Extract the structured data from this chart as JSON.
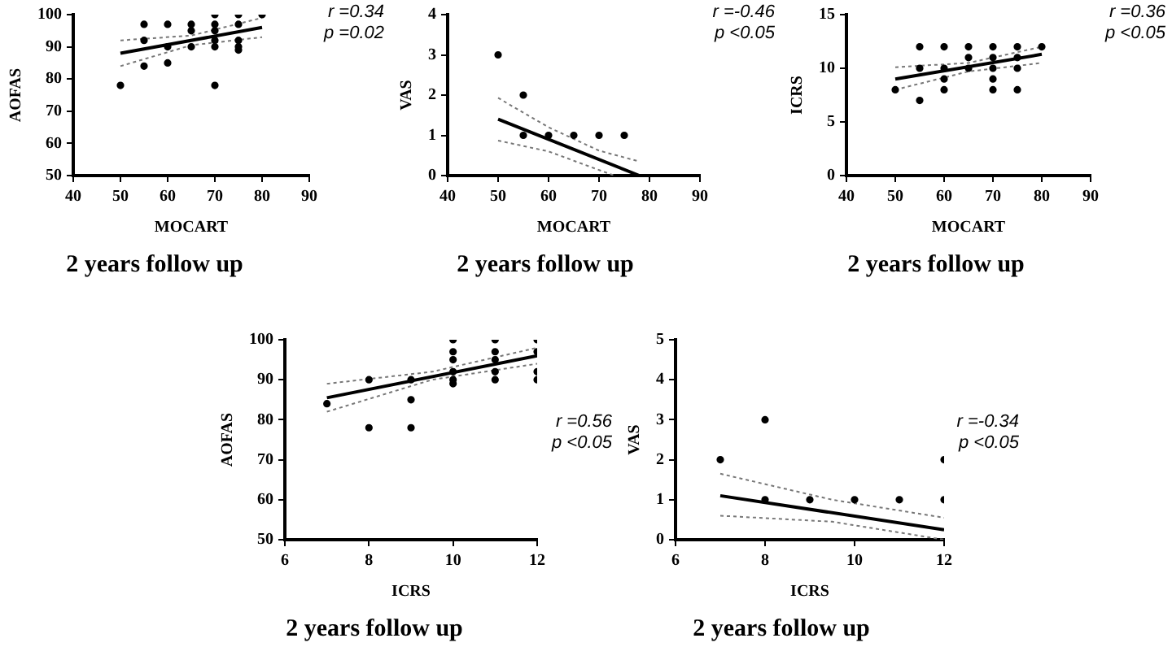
{
  "chart_data": [
    {
      "type": "scatter",
      "title": "2 years follow up",
      "xlabel": "MOCART",
      "ylabel": "AOFAS",
      "annotations": [
        "r =0.34",
        "p =0.02"
      ],
      "xlim": [
        40,
        90
      ],
      "xticks": [
        40,
        50,
        60,
        70,
        80,
        90
      ],
      "ylim": [
        50,
        100
      ],
      "yticks": [
        50,
        60,
        70,
        80,
        90,
        100
      ],
      "grid": false,
      "legend": false,
      "series": [
        {
          "type": "scatter",
          "marker": "circle",
          "color": "#000000",
          "x": [
            50,
            55,
            55,
            55,
            60,
            60,
            60,
            65,
            65,
            65,
            70,
            70,
            70,
            70,
            70,
            70,
            75,
            75,
            75,
            75,
            75,
            80
          ],
          "values": [
            78,
            97,
            92,
            84,
            97,
            90,
            85,
            97,
            95,
            90,
            100,
            97,
            95,
            92,
            90,
            78,
            100,
            97,
            92,
            90,
            89,
            100
          ]
        },
        {
          "type": "line",
          "line_style": "solid",
          "color": "#000000",
          "x": [
            50,
            80
          ],
          "values": [
            88,
            96
          ]
        },
        {
          "type": "line",
          "line_style": "dotted",
          "color": "#777777",
          "x": [
            50,
            65,
            80
          ],
          "values": [
            84,
            90.5,
            93
          ]
        },
        {
          "type": "line",
          "line_style": "dotted",
          "color": "#777777",
          "x": [
            50,
            65,
            80
          ],
          "values": [
            92,
            93.5,
            99
          ]
        }
      ]
    },
    {
      "type": "scatter",
      "title": "2 years follow up",
      "xlabel": "MOCART",
      "ylabel": "VAS",
      "annotations": [
        "r =-0.46",
        "p <0.05"
      ],
      "xlim": [
        40,
        90
      ],
      "xticks": [
        40,
        50,
        60,
        70,
        80,
        90
      ],
      "ylim": [
        0,
        4
      ],
      "yticks": [
        0,
        1,
        2,
        3,
        4
      ],
      "grid": false,
      "legend": false,
      "series": [
        {
          "type": "scatter",
          "marker": "circle",
          "color": "#000000",
          "x": [
            50,
            55,
            55,
            60,
            65,
            70,
            75
          ],
          "values": [
            3,
            2,
            1,
            1,
            1,
            1,
            1
          ]
        },
        {
          "type": "line",
          "line_style": "solid",
          "color": "#000000",
          "x": [
            50,
            78
          ],
          "values": [
            1.4,
            0
          ]
        },
        {
          "type": "line",
          "line_style": "dotted",
          "color": "#777777",
          "x": [
            50,
            60,
            73
          ],
          "values": [
            0.87,
            0.6,
            0
          ]
        },
        {
          "type": "line",
          "line_style": "dotted",
          "color": "#777777",
          "x": [
            50,
            60,
            70,
            78
          ],
          "values": [
            1.93,
            1.2,
            0.62,
            0.35
          ]
        }
      ]
    },
    {
      "type": "scatter",
      "title": "2 years follow up",
      "xlabel": "MOCART",
      "ylabel": "ICRS",
      "annotations": [
        "r =0.36",
        "p <0.05"
      ],
      "xlim": [
        40,
        90
      ],
      "xticks": [
        40,
        50,
        60,
        70,
        80,
        90
      ],
      "ylim": [
        0,
        15
      ],
      "yticks": [
        0,
        5,
        10,
        15
      ],
      "grid": false,
      "legend": false,
      "series": [
        {
          "type": "scatter",
          "marker": "circle",
          "color": "#000000",
          "x": [
            50,
            55,
            55,
            55,
            60,
            60,
            60,
            60,
            65,
            65,
            65,
            70,
            70,
            70,
            70,
            70,
            75,
            75,
            75,
            75,
            80
          ],
          "values": [
            8,
            12,
            10,
            7,
            12,
            10,
            9,
            8,
            12,
            11,
            10,
            12,
            11,
            10,
            9,
            8,
            12,
            11,
            10,
            8,
            12
          ]
        },
        {
          "type": "line",
          "line_style": "solid",
          "color": "#000000",
          "x": [
            50,
            80
          ],
          "values": [
            9,
            11.3
          ]
        },
        {
          "type": "line",
          "line_style": "dotted",
          "color": "#777777",
          "x": [
            50,
            65,
            80
          ],
          "values": [
            8,
            9.7,
            10.5
          ]
        },
        {
          "type": "line",
          "line_style": "dotted",
          "color": "#777777",
          "x": [
            50,
            65,
            80
          ],
          "values": [
            10.1,
            10.5,
            12
          ]
        }
      ]
    },
    {
      "type": "scatter",
      "title": "2 years follow up",
      "xlabel": "ICRS",
      "ylabel": "AOFAS",
      "annotations": [
        "r =0.56",
        "p <0.05"
      ],
      "xlim": [
        6,
        12
      ],
      "xticks": [
        6,
        8,
        10,
        12
      ],
      "ylim": [
        50,
        100
      ],
      "yticks": [
        50,
        60,
        70,
        80,
        90,
        100
      ],
      "grid": false,
      "legend": false,
      "series": [
        {
          "type": "scatter",
          "marker": "circle",
          "color": "#000000",
          "x": [
            7,
            8,
            8,
            9,
            9,
            9,
            10,
            10,
            10,
            10,
            10,
            10,
            11,
            11,
            11,
            11,
            11,
            12,
            12,
            12,
            12
          ],
          "values": [
            84,
            90,
            78,
            90,
            85,
            78,
            100,
            97,
            95,
            92,
            90,
            89,
            100,
            97,
            95,
            92,
            90,
            100,
            97,
            92,
            90
          ]
        },
        {
          "type": "line",
          "line_style": "solid",
          "color": "#000000",
          "x": [
            7,
            12
          ],
          "values": [
            85.5,
            96
          ]
        },
        {
          "type": "line",
          "line_style": "dotted",
          "color": "#777777",
          "x": [
            7,
            9.5,
            12
          ],
          "values": [
            82,
            90,
            94
          ]
        },
        {
          "type": "line",
          "line_style": "dotted",
          "color": "#777777",
          "x": [
            7,
            9.5,
            12
          ],
          "values": [
            89,
            92,
            98
          ]
        }
      ]
    },
    {
      "type": "scatter",
      "title": "2 years follow up",
      "xlabel": "ICRS",
      "ylabel": "VAS",
      "annotations": [
        "r =-0.34",
        "p <0.05"
      ],
      "xlim": [
        6,
        12
      ],
      "xticks": [
        6,
        8,
        10,
        12
      ],
      "ylim": [
        0,
        5
      ],
      "yticks": [
        0,
        1,
        2,
        3,
        4,
        5
      ],
      "grid": false,
      "legend": false,
      "series": [
        {
          "type": "scatter",
          "marker": "circle",
          "color": "#000000",
          "x": [
            7,
            8,
            8,
            9,
            10,
            11,
            12,
            12
          ],
          "values": [
            2,
            3,
            1,
            1,
            1,
            1,
            2,
            1
          ]
        },
        {
          "type": "line",
          "line_style": "solid",
          "color": "#000000",
          "x": [
            7,
            12
          ],
          "values": [
            1.1,
            0.25
          ]
        },
        {
          "type": "line",
          "line_style": "dotted",
          "color": "#777777",
          "x": [
            7,
            9.5,
            12
          ],
          "values": [
            0.6,
            0.45,
            0
          ]
        },
        {
          "type": "line",
          "line_style": "dotted",
          "color": "#777777",
          "x": [
            7,
            9.5,
            12
          ],
          "values": [
            1.65,
            1.0,
            0.55
          ]
        }
      ]
    }
  ]
}
